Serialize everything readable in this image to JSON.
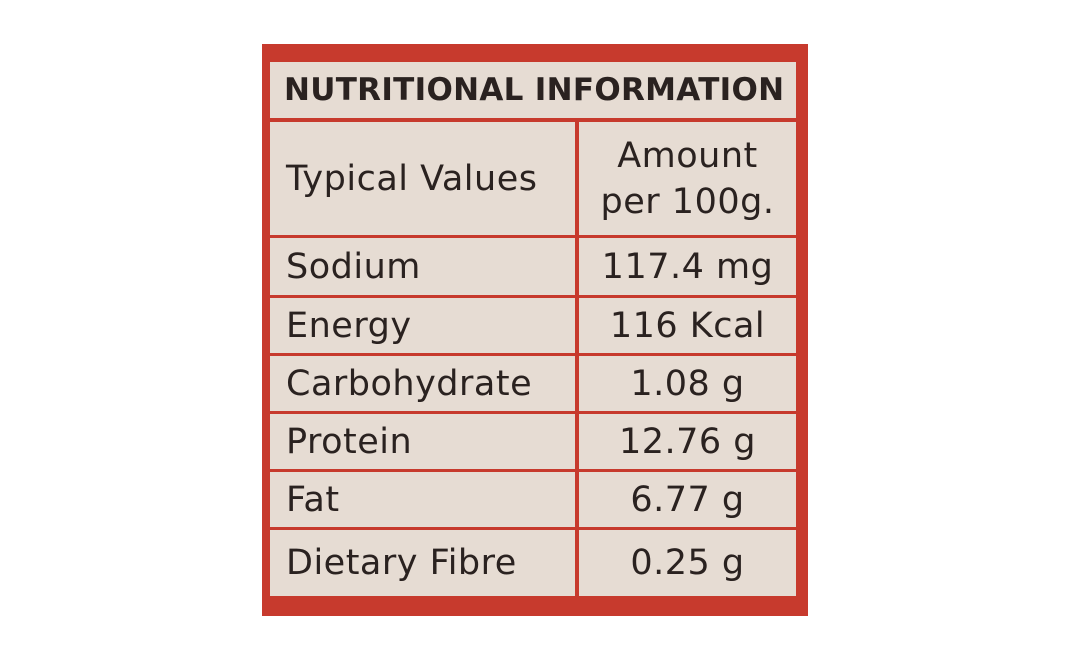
{
  "header": {
    "title": "NUTRITIONAL INFORMATION"
  },
  "table": {
    "columns": [
      "Typical Values",
      "Amount per 100g."
    ],
    "rows": [
      [
        "Sodium",
        "117.4 mg"
      ],
      [
        "Energy",
        "116 Kcal"
      ],
      [
        "Carbohydrate",
        "1.08 g"
      ],
      [
        "Protein",
        "12.76 g"
      ],
      [
        "Fat",
        "6.77 g"
      ],
      [
        "Dietary Fibre",
        "0.25 g"
      ]
    ]
  }
}
